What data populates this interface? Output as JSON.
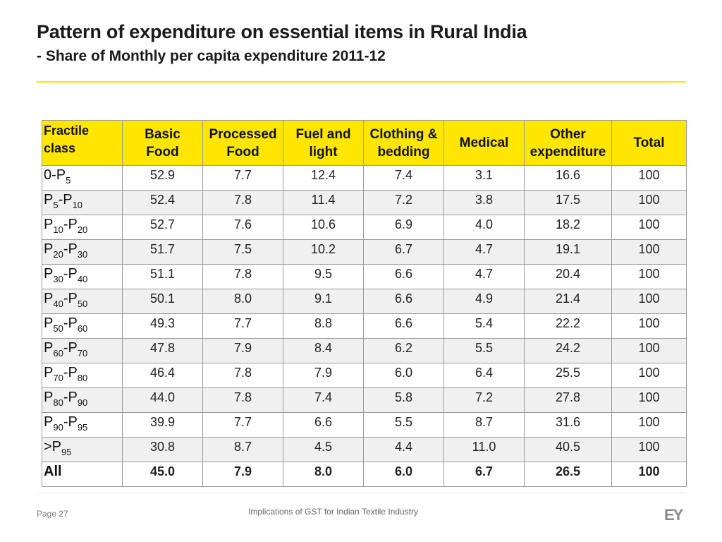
{
  "slide": {
    "title": "Pattern of expenditure on essential items in Rural  India",
    "subtitle": "- Share of Monthly per capita expenditure 2011-12"
  },
  "table": {
    "headers": [
      [
        "Fractile",
        "class"
      ],
      [
        "Basic",
        "Food"
      ],
      [
        "Processed",
        "Food"
      ],
      [
        "Fuel and",
        "light"
      ],
      [
        "Clothing &",
        "bedding"
      ],
      [
        "Medical"
      ],
      [
        "Other",
        "expenditure"
      ],
      [
        "Total"
      ]
    ],
    "rows": [
      {
        "label": {
          "main": "0-P",
          "sub1": "5",
          "mid": "",
          "sub2": ""
        },
        "values": [
          "52.9",
          "7.7",
          "12.4",
          "7.4",
          "3.1",
          "16.6",
          "100"
        ]
      },
      {
        "label": {
          "main": "P",
          "sub1": "5",
          "mid": "-P",
          "sub2": "10"
        },
        "values": [
          "52.4",
          "7.8",
          "11.4",
          "7.2",
          "3.8",
          "17.5",
          "100"
        ]
      },
      {
        "label": {
          "main": "P",
          "sub1": "10",
          "mid": "-P",
          "sub2": "20"
        },
        "values": [
          "52.7",
          "7.6",
          "10.6",
          "6.9",
          "4.0",
          "18.2",
          "100"
        ]
      },
      {
        "label": {
          "main": "P",
          "sub1": "20",
          "mid": "-P",
          "sub2": "30"
        },
        "values": [
          "51.7",
          "7.5",
          "10.2",
          "6.7",
          "4.7",
          "19.1",
          "100"
        ]
      },
      {
        "label": {
          "main": "P",
          "sub1": "30",
          "mid": "-P",
          "sub2": "40"
        },
        "values": [
          "51.1",
          "7.8",
          "9.5",
          "6.6",
          "4.7",
          "20.4",
          "100"
        ]
      },
      {
        "label": {
          "main": "P",
          "sub1": "40",
          "mid": "-P",
          "sub2": "50"
        },
        "values": [
          "50.1",
          "8.0",
          "9.1",
          "6.6",
          "4.9",
          "21.4",
          "100"
        ]
      },
      {
        "label": {
          "main": "P",
          "sub1": "50",
          "mid": "-P",
          "sub2": "60"
        },
        "values": [
          "49.3",
          "7.7",
          "8.8",
          "6.6",
          "5.4",
          "22.2",
          "100"
        ]
      },
      {
        "label": {
          "main": "P",
          "sub1": "60",
          "mid": "-P",
          "sub2": "70"
        },
        "values": [
          "47.8",
          "7.9",
          "8.4",
          "6.2",
          "5.5",
          "24.2",
          "100"
        ]
      },
      {
        "label": {
          "main": "P",
          "sub1": "70",
          "mid": "-P",
          "sub2": "80"
        },
        "values": [
          "46.4",
          "7.8",
          "7.9",
          "6.0",
          "6.4",
          "25.5",
          "100"
        ]
      },
      {
        "label": {
          "main": "P",
          "sub1": "80",
          "mid": "-P",
          "sub2": "90"
        },
        "values": [
          "44.0",
          "7.8",
          "7.4",
          "5.8",
          "7.2",
          "27.8",
          "100"
        ]
      },
      {
        "label": {
          "main": "P",
          "sub1": "90",
          "mid": "-P",
          "sub2": "95"
        },
        "values": [
          "39.9",
          "7.7",
          "6.6",
          "5.5",
          "8.7",
          "31.6",
          "100"
        ]
      },
      {
        "label": {
          "main": ">P",
          "sub1": "95",
          "mid": "",
          "sub2": ""
        },
        "values": [
          "30.8",
          "8.7",
          "4.5",
          "4.4",
          "11.0",
          "40.5",
          "100"
        ]
      },
      {
        "label": {
          "main": "All",
          "sub1": "",
          "mid": "",
          "sub2": ""
        },
        "values": [
          "45.0",
          "7.9",
          "8.0",
          "6.0",
          "6.7",
          "26.5",
          "100"
        ]
      }
    ]
  },
  "footer": {
    "page": "Page 27",
    "text": "Implications of GST for Indian Textile Industry",
    "logo": "EY"
  },
  "colors": {
    "accent_yellow": "#ffe600",
    "logo_gray": "#8a8a8a"
  }
}
